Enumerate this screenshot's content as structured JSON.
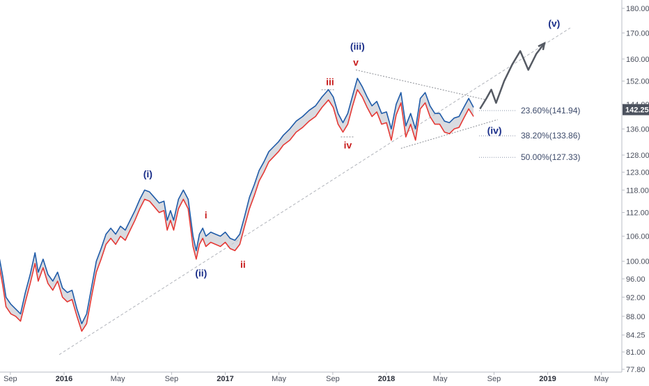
{
  "chart_data": {
    "type": "line",
    "x_ticks": [
      {
        "t": 2015.667,
        "label": "Sep",
        "year": false
      },
      {
        "t": 2016.0,
        "label": "2016",
        "year": true
      },
      {
        "t": 2016.333,
        "label": "May",
        "year": false
      },
      {
        "t": 2016.667,
        "label": "Sep",
        "year": false
      },
      {
        "t": 2017.0,
        "label": "2017",
        "year": true
      },
      {
        "t": 2017.333,
        "label": "May",
        "year": false
      },
      {
        "t": 2017.667,
        "label": "Sep",
        "year": false
      },
      {
        "t": 2018.0,
        "label": "2018",
        "year": true
      },
      {
        "t": 2018.333,
        "label": "May",
        "year": false
      },
      {
        "t": 2018.667,
        "label": "Sep",
        "year": false
      },
      {
        "t": 2019.0,
        "label": "2019",
        "year": true
      },
      {
        "t": 2019.333,
        "label": "May",
        "year": false
      }
    ],
    "y_ticks": [
      "77.80",
      "81.00",
      "84.25",
      "88.00",
      "92.00",
      "96.00",
      "100.00",
      "106.00",
      "112.00",
      "118.00",
      "123.00",
      "128.00",
      "136.00",
      "144.00",
      "152.00",
      "160.00",
      "170.00",
      "180.00"
    ],
    "ylim": [
      77.8,
      180.0
    ],
    "y_scale": "log",
    "series": [
      {
        "color": "#1f5ba8",
        "points": [
          [
            2015.6,
            100.5
          ],
          [
            2015.62,
            96.5
          ],
          [
            2015.64,
            92.0
          ],
          [
            2015.67,
            90.5
          ],
          [
            2015.7,
            89.5
          ],
          [
            2015.73,
            88.5
          ],
          [
            2015.76,
            93.0
          ],
          [
            2015.79,
            97.0
          ],
          [
            2015.82,
            102.0
          ],
          [
            2015.84,
            97.5
          ],
          [
            2015.87,
            100.5
          ],
          [
            2015.9,
            97.0
          ],
          [
            2015.93,
            95.5
          ],
          [
            2015.96,
            97.5
          ],
          [
            2015.99,
            94.0
          ],
          [
            2016.02,
            93.0
          ],
          [
            2016.05,
            93.5
          ],
          [
            2016.08,
            89.5
          ],
          [
            2016.11,
            86.5
          ],
          [
            2016.14,
            88.5
          ],
          [
            2016.17,
            94.0
          ],
          [
            2016.2,
            100.0
          ],
          [
            2016.23,
            103.0
          ],
          [
            2016.26,
            106.5
          ],
          [
            2016.29,
            108.0
          ],
          [
            2016.32,
            106.5
          ],
          [
            2016.35,
            108.5
          ],
          [
            2016.38,
            107.5
          ],
          [
            2016.41,
            110.0
          ],
          [
            2016.44,
            112.5
          ],
          [
            2016.47,
            115.5
          ],
          [
            2016.5,
            118.0
          ],
          [
            2016.53,
            117.5
          ],
          [
            2016.56,
            116.0
          ],
          [
            2016.59,
            114.5
          ],
          [
            2016.62,
            115.0
          ],
          [
            2016.64,
            110.0
          ],
          [
            2016.66,
            112.5
          ],
          [
            2016.68,
            110.0
          ],
          [
            2016.71,
            115.5
          ],
          [
            2016.74,
            118.0
          ],
          [
            2016.77,
            115.5
          ],
          [
            2016.8,
            106.0
          ],
          [
            2016.82,
            102.5
          ],
          [
            2016.84,
            106.5
          ],
          [
            2016.86,
            108.0
          ],
          [
            2016.88,
            106.0
          ],
          [
            2016.91,
            107.0
          ],
          [
            2016.94,
            106.5
          ],
          [
            2016.97,
            106.0
          ],
          [
            2017.0,
            107.0
          ],
          [
            2017.03,
            105.5
          ],
          [
            2017.06,
            105.0
          ],
          [
            2017.09,
            106.5
          ],
          [
            2017.12,
            111.0
          ],
          [
            2017.15,
            116.0
          ],
          [
            2017.18,
            119.5
          ],
          [
            2017.21,
            123.5
          ],
          [
            2017.24,
            126.0
          ],
          [
            2017.27,
            129.0
          ],
          [
            2017.3,
            130.5
          ],
          [
            2017.33,
            132.0
          ],
          [
            2017.36,
            134.0
          ],
          [
            2017.4,
            136.0
          ],
          [
            2017.44,
            138.5
          ],
          [
            2017.48,
            140.0
          ],
          [
            2017.52,
            142.0
          ],
          [
            2017.56,
            143.5
          ],
          [
            2017.6,
            146.5
          ],
          [
            2017.64,
            149.0
          ],
          [
            2017.67,
            146.5
          ],
          [
            2017.7,
            141.0
          ],
          [
            2017.73,
            138.0
          ],
          [
            2017.76,
            141.0
          ],
          [
            2017.79,
            147.0
          ],
          [
            2017.82,
            153.0
          ],
          [
            2017.85,
            150.0
          ],
          [
            2017.88,
            146.5
          ],
          [
            2017.91,
            143.5
          ],
          [
            2017.94,
            145.0
          ],
          [
            2017.97,
            141.0
          ],
          [
            2018.0,
            141.5
          ],
          [
            2018.03,
            136.0
          ],
          [
            2018.06,
            144.0
          ],
          [
            2018.09,
            148.0
          ],
          [
            2018.12,
            137.0
          ],
          [
            2018.15,
            141.0
          ],
          [
            2018.18,
            136.0
          ],
          [
            2018.21,
            146.0
          ],
          [
            2018.24,
            148.0
          ],
          [
            2018.27,
            143.5
          ],
          [
            2018.3,
            141.0
          ],
          [
            2018.33,
            141.0
          ],
          [
            2018.36,
            138.5
          ],
          [
            2018.39,
            138.0
          ],
          [
            2018.42,
            139.5
          ],
          [
            2018.45,
            140.0
          ],
          [
            2018.48,
            143.0
          ],
          [
            2018.51,
            146.0
          ],
          [
            2018.54,
            143.0
          ]
        ]
      },
      {
        "color": "#e53935",
        "points": [
          [
            2015.6,
            98.5
          ],
          [
            2015.62,
            94.5
          ],
          [
            2015.64,
            90.0
          ],
          [
            2015.67,
            88.5
          ],
          [
            2015.7,
            88.0
          ],
          [
            2015.73,
            87.0
          ],
          [
            2015.76,
            91.0
          ],
          [
            2015.79,
            95.0
          ],
          [
            2015.82,
            99.5
          ],
          [
            2015.84,
            95.5
          ],
          [
            2015.87,
            98.5
          ],
          [
            2015.9,
            95.0
          ],
          [
            2015.93,
            93.5
          ],
          [
            2015.96,
            95.5
          ],
          [
            2015.99,
            92.0
          ],
          [
            2016.02,
            91.0
          ],
          [
            2016.05,
            91.5
          ],
          [
            2016.08,
            88.0
          ],
          [
            2016.11,
            85.0
          ],
          [
            2016.14,
            86.5
          ],
          [
            2016.17,
            92.0
          ],
          [
            2016.2,
            97.5
          ],
          [
            2016.23,
            100.5
          ],
          [
            2016.26,
            104.0
          ],
          [
            2016.29,
            105.5
          ],
          [
            2016.32,
            104.0
          ],
          [
            2016.35,
            106.0
          ],
          [
            2016.38,
            105.0
          ],
          [
            2016.41,
            107.5
          ],
          [
            2016.44,
            110.0
          ],
          [
            2016.47,
            113.0
          ],
          [
            2016.5,
            115.5
          ],
          [
            2016.53,
            115.0
          ],
          [
            2016.56,
            113.5
          ],
          [
            2016.59,
            112.0
          ],
          [
            2016.62,
            112.5
          ],
          [
            2016.64,
            107.5
          ],
          [
            2016.66,
            110.0
          ],
          [
            2016.68,
            107.5
          ],
          [
            2016.71,
            113.0
          ],
          [
            2016.74,
            115.5
          ],
          [
            2016.77,
            113.0
          ],
          [
            2016.8,
            103.5
          ],
          [
            2016.82,
            100.5
          ],
          [
            2016.84,
            104.0
          ],
          [
            2016.86,
            105.5
          ],
          [
            2016.88,
            103.5
          ],
          [
            2016.91,
            104.5
          ],
          [
            2016.94,
            104.0
          ],
          [
            2016.97,
            103.5
          ],
          [
            2017.0,
            104.5
          ],
          [
            2017.03,
            103.0
          ],
          [
            2017.06,
            102.5
          ],
          [
            2017.09,
            104.0
          ],
          [
            2017.12,
            108.5
          ],
          [
            2017.15,
            113.0
          ],
          [
            2017.18,
            116.5
          ],
          [
            2017.21,
            120.5
          ],
          [
            2017.24,
            123.0
          ],
          [
            2017.27,
            126.0
          ],
          [
            2017.3,
            127.5
          ],
          [
            2017.33,
            129.0
          ],
          [
            2017.36,
            131.0
          ],
          [
            2017.4,
            132.5
          ],
          [
            2017.44,
            135.0
          ],
          [
            2017.48,
            136.5
          ],
          [
            2017.52,
            138.5
          ],
          [
            2017.56,
            140.0
          ],
          [
            2017.6,
            143.0
          ],
          [
            2017.64,
            145.5
          ],
          [
            2017.67,
            143.0
          ],
          [
            2017.7,
            137.5
          ],
          [
            2017.73,
            135.0
          ],
          [
            2017.76,
            137.5
          ],
          [
            2017.79,
            143.5
          ],
          [
            2017.82,
            149.0
          ],
          [
            2017.85,
            146.5
          ],
          [
            2017.88,
            143.0
          ],
          [
            2017.91,
            140.0
          ],
          [
            2017.94,
            141.5
          ],
          [
            2017.97,
            137.5
          ],
          [
            2018.0,
            138.0
          ],
          [
            2018.03,
            132.5
          ],
          [
            2018.06,
            140.5
          ],
          [
            2018.09,
            144.5
          ],
          [
            2018.12,
            133.5
          ],
          [
            2018.15,
            137.5
          ],
          [
            2018.18,
            132.5
          ],
          [
            2018.21,
            142.5
          ],
          [
            2018.24,
            144.5
          ],
          [
            2018.27,
            140.0
          ],
          [
            2018.3,
            137.5
          ],
          [
            2018.33,
            137.5
          ],
          [
            2018.36,
            135.0
          ],
          [
            2018.39,
            134.5
          ],
          [
            2018.42,
            136.0
          ],
          [
            2018.45,
            136.5
          ],
          [
            2018.48,
            139.5
          ],
          [
            2018.51,
            142.5
          ],
          [
            2018.54,
            140.0
          ]
        ]
      }
    ],
    "projection": [
      [
        2018.58,
        142.5
      ],
      [
        2018.62,
        146.0
      ],
      [
        2018.65,
        149.0
      ],
      [
        2018.68,
        144.5
      ],
      [
        2018.73,
        152.0
      ],
      [
        2018.78,
        158.0
      ],
      [
        2018.83,
        163.0
      ],
      [
        2018.88,
        156.0
      ],
      [
        2018.93,
        162.0
      ],
      [
        2018.98,
        166.0
      ]
    ],
    "support_line": [
      [
        2015.97,
        80.5
      ],
      [
        2019.14,
        172.0
      ]
    ],
    "triangle_upper": [
      [
        2017.81,
        156.0
      ],
      [
        2018.62,
        145.5
      ]
    ],
    "triangle_lower": [
      [
        2018.09,
        130.0
      ],
      [
        2018.69,
        139.0
      ]
    ],
    "current_price": "142.25",
    "wave_labels": [
      {
        "text": "(i)",
        "t": 2016.52,
        "p": 121.5,
        "color": "blue"
      },
      {
        "text": "(ii)",
        "t": 2016.85,
        "p": 96.5,
        "color": "blue"
      },
      {
        "text": "(iii)",
        "t": 2017.82,
        "p": 163.5,
        "color": "blue"
      },
      {
        "text": "(iv)",
        "t": 2018.67,
        "p": 134.5,
        "color": "blue"
      },
      {
        "text": "(v)",
        "t": 2019.04,
        "p": 172.5,
        "color": "blue"
      },
      {
        "text": "i",
        "t": 2016.88,
        "p": 110.5,
        "color": "red"
      },
      {
        "text": "ii",
        "t": 2017.11,
        "p": 98.5,
        "color": "red"
      },
      {
        "text": "iii",
        "t": 2017.65,
        "p": 150.5,
        "color": "red"
      },
      {
        "text": "iv",
        "t": 2017.76,
        "p": 130.0,
        "color": "red"
      },
      {
        "text": "v",
        "t": 2017.81,
        "p": 157.5,
        "color": "red"
      }
    ],
    "fib_levels": [
      {
        "label": "23.60%(141.94)",
        "p": 141.94
      },
      {
        "label": "38.20%(133.86)",
        "p": 133.86
      },
      {
        "label": "50.00%(127.33)",
        "p": 127.33
      }
    ]
  }
}
